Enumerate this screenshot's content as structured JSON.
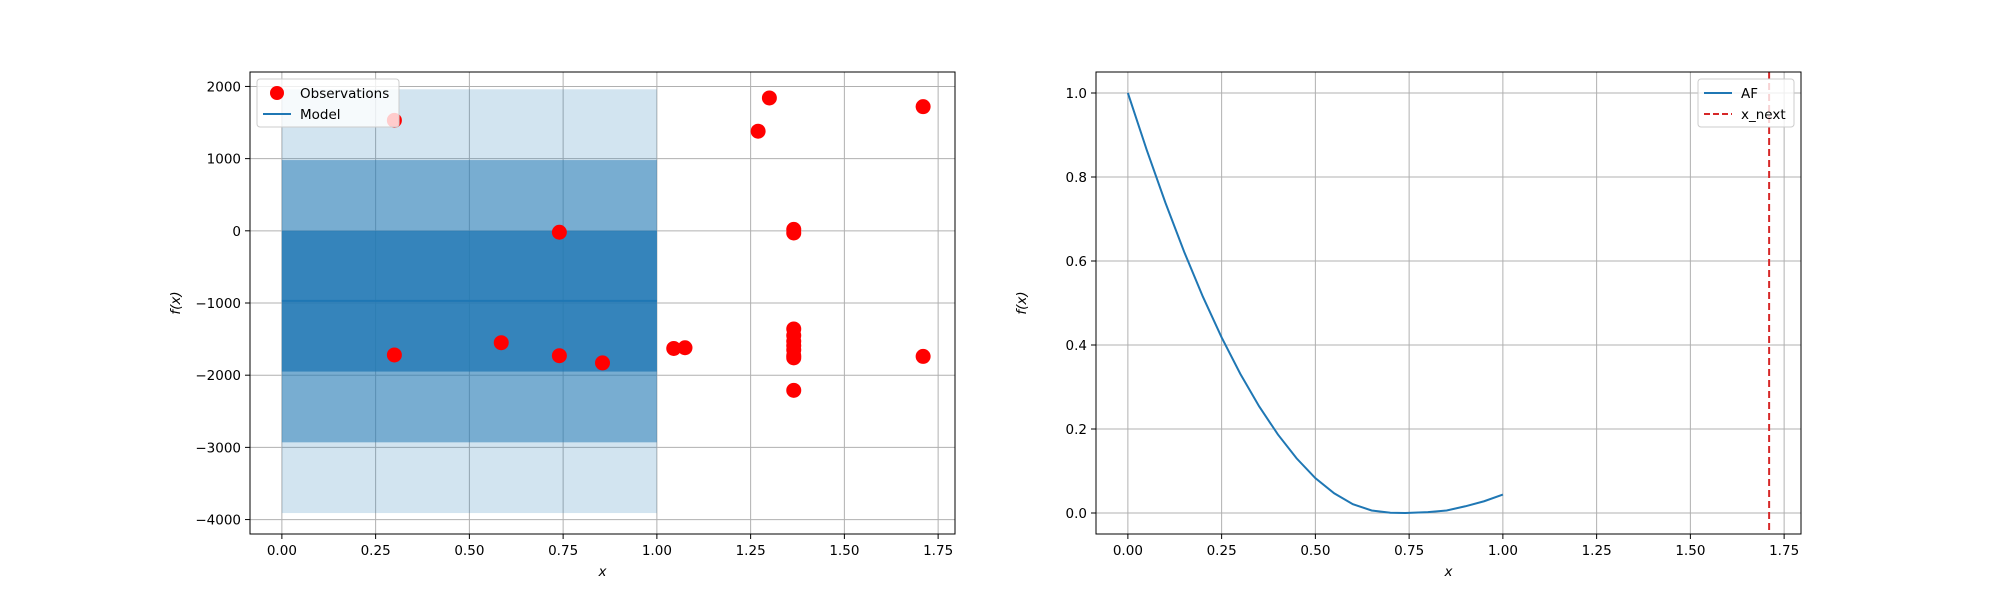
{
  "chart_data": [
    {
      "type": "scatter",
      "xlabel": "x",
      "ylabel": "f(x)",
      "xlim": [
        -0.085,
        1.795
      ],
      "ylim": [
        -4200,
        2200
      ],
      "xticks": [
        0.0,
        0.25,
        0.5,
        0.75,
        1.0,
        1.25,
        1.5,
        1.75
      ],
      "xtick_labels": [
        "0.00",
        "0.25",
        "0.50",
        "0.75",
        "1.00",
        "1.25",
        "1.50",
        "1.75"
      ],
      "yticks": [
        -4000,
        -3000,
        -2000,
        -1000,
        0,
        1000,
        2000
      ],
      "ytick_labels": [
        "−4000",
        "−3000",
        "−2000",
        "−1000",
        "0",
        "1000",
        "2000"
      ],
      "grid": true,
      "legend_position": "upper-left",
      "legend": [
        "Observations",
        "Model"
      ],
      "observations": {
        "name": "Observations",
        "color": "#ff0000",
        "x": [
          0.3,
          0.3,
          0.585,
          0.74,
          0.74,
          0.855,
          1.045,
          1.075,
          1.27,
          1.3,
          1.365,
          1.365,
          1.365,
          1.365,
          1.365,
          1.365,
          1.365,
          1.365,
          1.365,
          1.365,
          1.71,
          1.71
        ],
        "y": [
          1530,
          -1720,
          -1550,
          -20,
          -1730,
          -1830,
          -1630,
          -1620,
          1380,
          1840,
          20,
          -30,
          -1360,
          -1450,
          -1530,
          -1590,
          -1650,
          -1730,
          -1760,
          -2210,
          1720,
          -1740
        ]
      },
      "model": {
        "name": "Model",
        "color": "#1f77b4",
        "x": [
          0.0,
          1.0
        ],
        "mean": -970,
        "bands": [
          {
            "lower": -1950,
            "upper": 0,
            "opacity": 0.75
          },
          {
            "lower": -2930,
            "upper": 980,
            "opacity": 0.5
          },
          {
            "lower": -3910,
            "upper": 1960,
            "opacity": 0.2
          }
        ]
      }
    },
    {
      "type": "line",
      "xlabel": "x",
      "ylabel": "f(x)",
      "xlim": [
        -0.085,
        1.795
      ],
      "ylim": [
        -0.05,
        1.05
      ],
      "xticks": [
        0.0,
        0.25,
        0.5,
        0.75,
        1.0,
        1.25,
        1.5,
        1.75
      ],
      "xtick_labels": [
        "0.00",
        "0.25",
        "0.50",
        "0.75",
        "1.00",
        "1.25",
        "1.50",
        "1.75"
      ],
      "yticks": [
        0.0,
        0.2,
        0.4,
        0.6,
        0.8,
        1.0
      ],
      "ytick_labels": [
        "0.0",
        "0.2",
        "0.4",
        "0.6",
        "0.8",
        "1.0"
      ],
      "grid": true,
      "legend_position": "upper-right",
      "legend": [
        "AF",
        "x_next"
      ],
      "series": [
        {
          "name": "AF",
          "color": "#1f77b4",
          "x": [
            0.0,
            0.05,
            0.1,
            0.15,
            0.2,
            0.25,
            0.3,
            0.35,
            0.4,
            0.45,
            0.5,
            0.55,
            0.6,
            0.65,
            0.7,
            0.74,
            0.8,
            0.85,
            0.9,
            0.95,
            1.0
          ],
          "y": [
            1.0,
            0.865,
            0.739,
            0.622,
            0.515,
            0.418,
            0.331,
            0.254,
            0.187,
            0.13,
            0.083,
            0.047,
            0.021,
            0.006,
            0.0006,
            0.0,
            0.002,
            0.006,
            0.016,
            0.028,
            0.044
          ]
        }
      ],
      "x_next": {
        "name": "x_next",
        "x": 1.71,
        "color": "#d62728"
      }
    }
  ]
}
